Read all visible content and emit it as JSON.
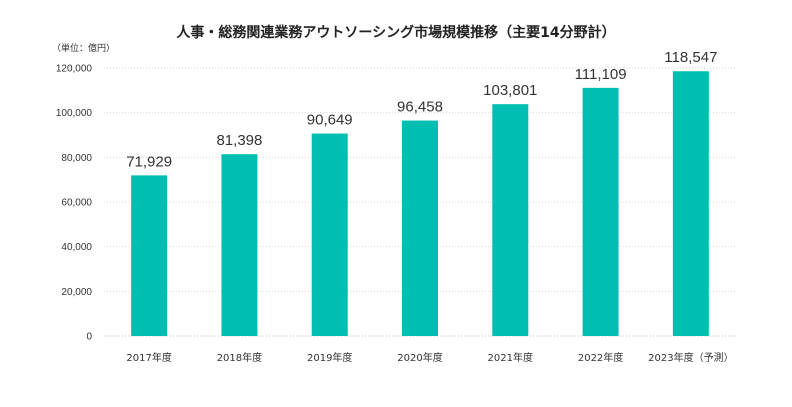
{
  "chart_data": {
    "type": "bar",
    "title": "人事・総務関連業務アウトソーシング市場規模推移（主要14分野計）",
    "unit_label": "（単位：億円）",
    "categories": [
      "2017年度",
      "2018年度",
      "2019年度",
      "2020年度",
      "2021年度",
      "2022年度",
      "2023年度（予測）"
    ],
    "values": [
      71929,
      81398,
      90649,
      96458,
      103801,
      111109,
      118547
    ],
    "data_labels": [
      "71,929",
      "81,398",
      "90,649",
      "96,458",
      "103,801",
      "111,109",
      "118,547"
    ],
    "ylim": [
      0,
      120000
    ],
    "yticks": [
      0,
      20000,
      40000,
      60000,
      80000,
      100000,
      120000
    ],
    "ytick_labels": [
      "0",
      "20,000",
      "40,000",
      "60,000",
      "80,000",
      "100,000",
      "120,000"
    ],
    "grid": true,
    "bar_color": "#00bfb2"
  }
}
